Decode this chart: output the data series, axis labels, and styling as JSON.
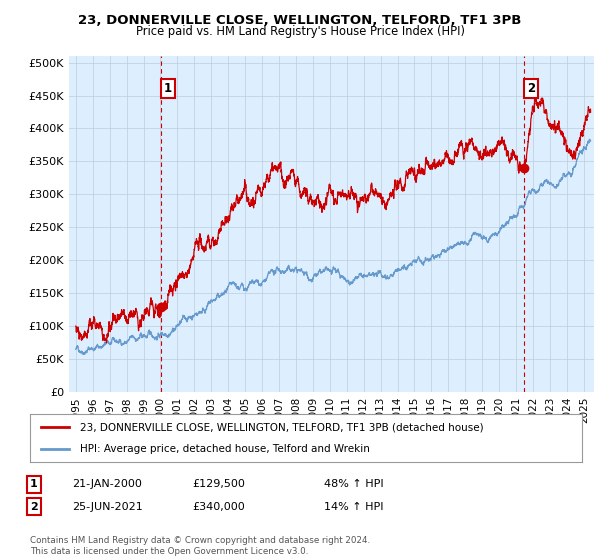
{
  "title": "23, DONNERVILLE CLOSE, WELLINGTON, TELFORD, TF1 3PB",
  "subtitle": "Price paid vs. HM Land Registry's House Price Index (HPI)",
  "ylabel_ticks": [
    "£0",
    "£50K",
    "£100K",
    "£150K",
    "£200K",
    "£250K",
    "£300K",
    "£350K",
    "£400K",
    "£450K",
    "£500K"
  ],
  "ytick_values": [
    0,
    50000,
    100000,
    150000,
    200000,
    250000,
    300000,
    350000,
    400000,
    450000,
    500000
  ],
  "sale1_year": 2000.055,
  "sale1_price": 129500,
  "sale2_year": 2021.479,
  "sale2_price": 340000,
  "legend_line1": "23, DONNERVILLE CLOSE, WELLINGTON, TELFORD, TF1 3PB (detached house)",
  "legend_line2": "HPI: Average price, detached house, Telford and Wrekin",
  "info1_date": "21-JAN-2000",
  "info1_price": "£129,500",
  "info1_hpi": "48% ↑ HPI",
  "info2_date": "25-JUN-2021",
  "info2_price": "£340,000",
  "info2_hpi": "14% ↑ HPI",
  "footnote": "Contains HM Land Registry data © Crown copyright and database right 2024.\nThis data is licensed under the Open Government Licence v3.0.",
  "red_color": "#cc0000",
  "blue_color": "#6699cc",
  "bg_fill_color": "#ddeeff",
  "background_color": "#ffffff",
  "grid_color": "#bbccdd"
}
